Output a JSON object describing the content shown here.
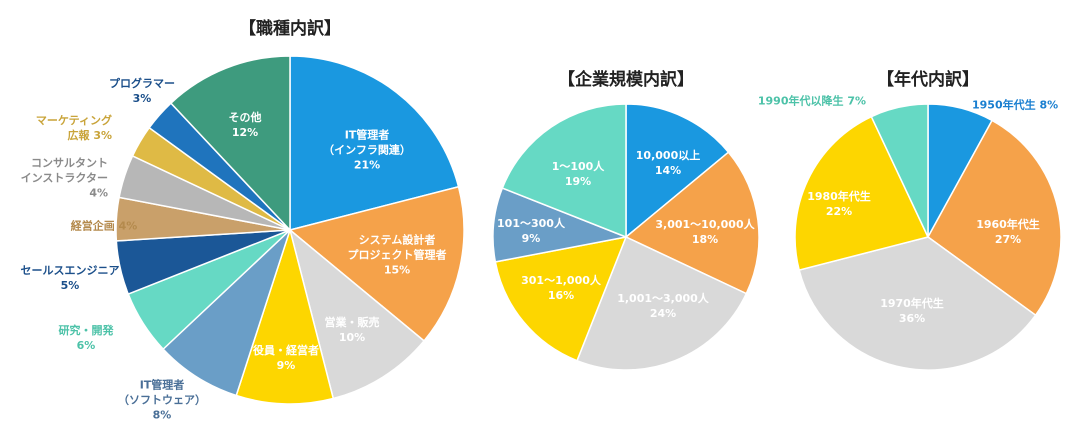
{
  "chart_data": [
    {
      "type": "pie",
      "title": "【職種内訳】",
      "slices": [
        {
          "lines": [
            "IT管理者",
            "（インフラ関連）",
            "21%"
          ],
          "value": 21,
          "color": "#1a98e0",
          "text_color": "#ffffff",
          "pos": "inside"
        },
        {
          "lines": [
            "システム設計者",
            "プロジェクト管理者",
            "15%"
          ],
          "value": 15,
          "color": "#f5a24a",
          "text_color": "#ffffff",
          "pos": "inside"
        },
        {
          "lines": [
            "営業・販売",
            "10%"
          ],
          "value": 10,
          "color": "#d9d9d9",
          "text_color": "#ffffff",
          "pos": "inside"
        },
        {
          "lines": [
            "役員・経営者",
            "9%"
          ],
          "value": 9,
          "color": "#fdd600",
          "text_color": "#ffffff",
          "pos": "inside"
        },
        {
          "lines": [
            "IT管理者",
            "（ソフトウェア）",
            "8%"
          ],
          "value": 8,
          "color": "#6a9ec7",
          "text_color": "#4a6f97",
          "pos": "outside"
        },
        {
          "lines": [
            "研究・開発",
            "6%"
          ],
          "value": 6,
          "color": "#66d9c4",
          "text_color": "#4cc2a8",
          "pos": "outside"
        },
        {
          "lines": [
            "セールスエンジニア",
            "5%"
          ],
          "value": 5,
          "color": "#1b5797",
          "text_color": "#1b4f8a",
          "pos": "outside"
        },
        {
          "lines": [
            "経営企画 4%"
          ],
          "value": 4,
          "color": "#c9a06a",
          "text_color": "#b48a4d",
          "pos": "outside"
        },
        {
          "lines": [
            "コンサルタント",
            "インストラクター",
            "4%"
          ],
          "value": 4,
          "color": "#b7b7b7",
          "text_color": "#8a8a8a",
          "pos": "outside"
        },
        {
          "lines": [
            "マーケティング",
            "広報 3%"
          ],
          "value": 3,
          "color": "#dfba45",
          "text_color": "#c9a43a",
          "pos": "outside"
        },
        {
          "lines": [
            "プログラマー",
            "3%"
          ],
          "value": 3,
          "color": "#1f74bd",
          "text_color": "#1b4f8a",
          "pos": "outside"
        },
        {
          "lines": [
            "その他",
            "12%"
          ],
          "value": 12,
          "color": "#3e9b7e",
          "text_color": "#ffffff",
          "pos": "inside"
        }
      ]
    },
    {
      "type": "pie",
      "title": "【企業規模内訳】",
      "slices": [
        {
          "lines": [
            "10,000以上",
            "14%"
          ],
          "value": 14,
          "color": "#1a98e0",
          "text_color": "#ffffff",
          "pos": "inside"
        },
        {
          "lines": [
            "3,001～10,000人",
            "18%"
          ],
          "value": 18,
          "color": "#f5a24a",
          "text_color": "#ffffff",
          "pos": "inside"
        },
        {
          "lines": [
            "1,001～3,000人",
            "24%"
          ],
          "value": 24,
          "color": "#d9d9d9",
          "text_color": "#ffffff",
          "pos": "inside"
        },
        {
          "lines": [
            "301～1,000人",
            "16%"
          ],
          "value": 16,
          "color": "#fdd600",
          "text_color": "#ffffff",
          "pos": "inside"
        },
        {
          "lines": [
            "101～300人",
            "9%"
          ],
          "value": 9,
          "color": "#6a9ec7",
          "text_color": "#ffffff",
          "pos": "inside"
        },
        {
          "lines": [
            "1～100人",
            "19%"
          ],
          "value": 19,
          "color": "#66d9c4",
          "text_color": "#ffffff",
          "pos": "inside"
        }
      ]
    },
    {
      "type": "pie",
      "title": "【年代内訳】",
      "slices": [
        {
          "lines": [
            "1950年代生 8%"
          ],
          "value": 8,
          "color": "#1a98e0",
          "text_color": "#1a7fd0",
          "pos": "outside"
        },
        {
          "lines": [
            "1960年代生",
            "27%"
          ],
          "value": 27,
          "color": "#f5a24a",
          "text_color": "#ffffff",
          "pos": "inside"
        },
        {
          "lines": [
            "1970年代生",
            "36%"
          ],
          "value": 36,
          "color": "#d9d9d9",
          "text_color": "#ffffff",
          "pos": "inside"
        },
        {
          "lines": [
            "1980年代生",
            "22%"
          ],
          "value": 22,
          "color": "#fdd600",
          "text_color": "#ffffff",
          "pos": "inside"
        },
        {
          "lines": [
            "1990年代以降生 7%"
          ],
          "value": 7,
          "color": "#66d9c4",
          "text_color": "#4cc2a8",
          "pos": "outside"
        }
      ]
    }
  ]
}
